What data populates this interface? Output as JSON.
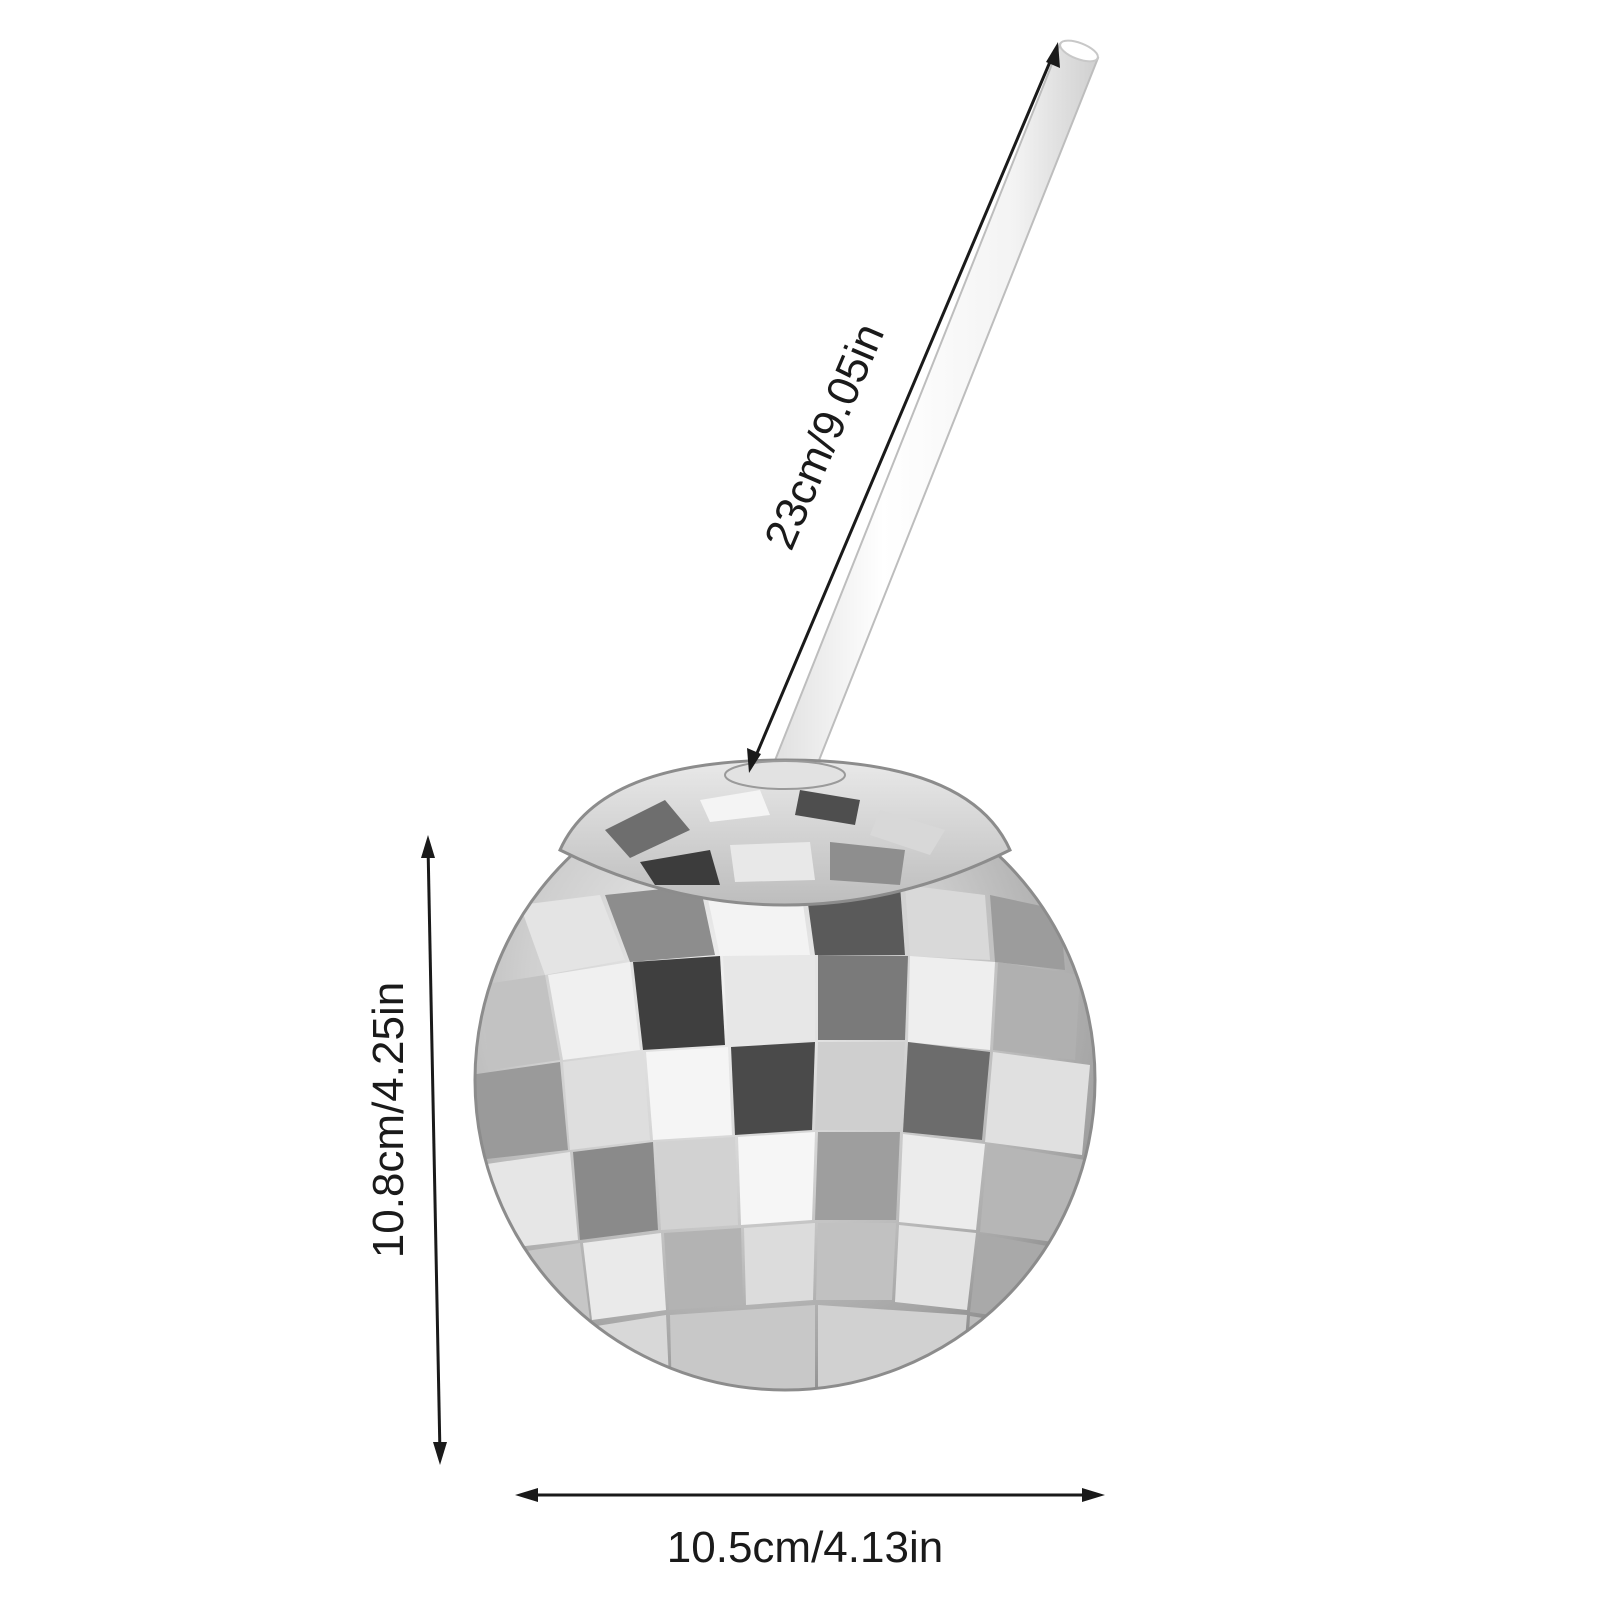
{
  "image": {
    "subject": "disco-ball-cup-with-straw",
    "background_color": "#ffffff",
    "line_color": "#1a1a1a",
    "ball_colors": {
      "highlight": "#f4f4f4",
      "light": "#d6d6d6",
      "mid": "#a8a8a8",
      "dark": "#6e6e6e",
      "darkest": "#3a3a3a"
    },
    "straw_color": "#f7f7f7"
  },
  "dimensions": {
    "straw_length": "23cm/9.05in",
    "height": "10.8cm/4.25in",
    "width": "10.5cm/4.13in"
  }
}
